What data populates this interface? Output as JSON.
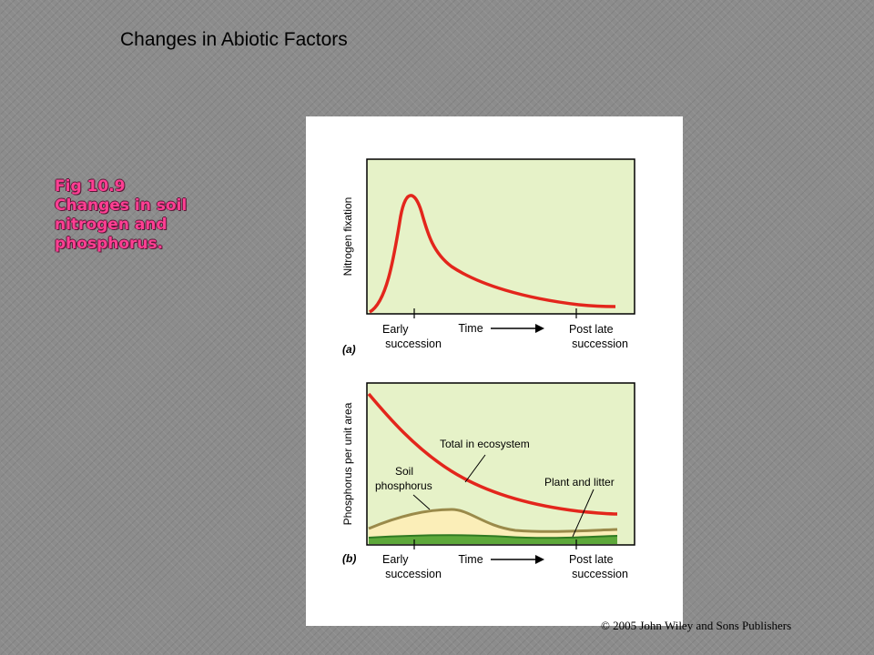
{
  "slide": {
    "title": "Changes in Abiotic Factors",
    "caption_lines": [
      "Fig 10.9",
      "Changes in soil",
      "nitrogen and",
      "phosphorus."
    ],
    "copyright": "© 2005 John Wiley and Sons Publishers"
  },
  "figure": {
    "panel_a": {
      "label": "(a)",
      "ylabel": "Nitrogen fixation",
      "tick_left": "Early\nsuccession",
      "tick_mid": "Time",
      "tick_right": "Post late\nsuccession"
    },
    "panel_b": {
      "label": "(b)",
      "ylabel": "Phosphorus per unit area",
      "tick_left": "Early\nsuccession",
      "tick_mid": "Time",
      "tick_right": "Post late\nsuccession",
      "annotations": {
        "total": "Total in ecosystem",
        "soil": "Soil\nphosphorus",
        "plant": "Plant and litter"
      }
    },
    "colors": {
      "plot_bg": "#e6f2c8",
      "curve_red": "#e3261c",
      "soil_fill": "#fbeeb8",
      "soil_line": "#9a8a4a",
      "plant_fill": "#5da83a"
    }
  }
}
